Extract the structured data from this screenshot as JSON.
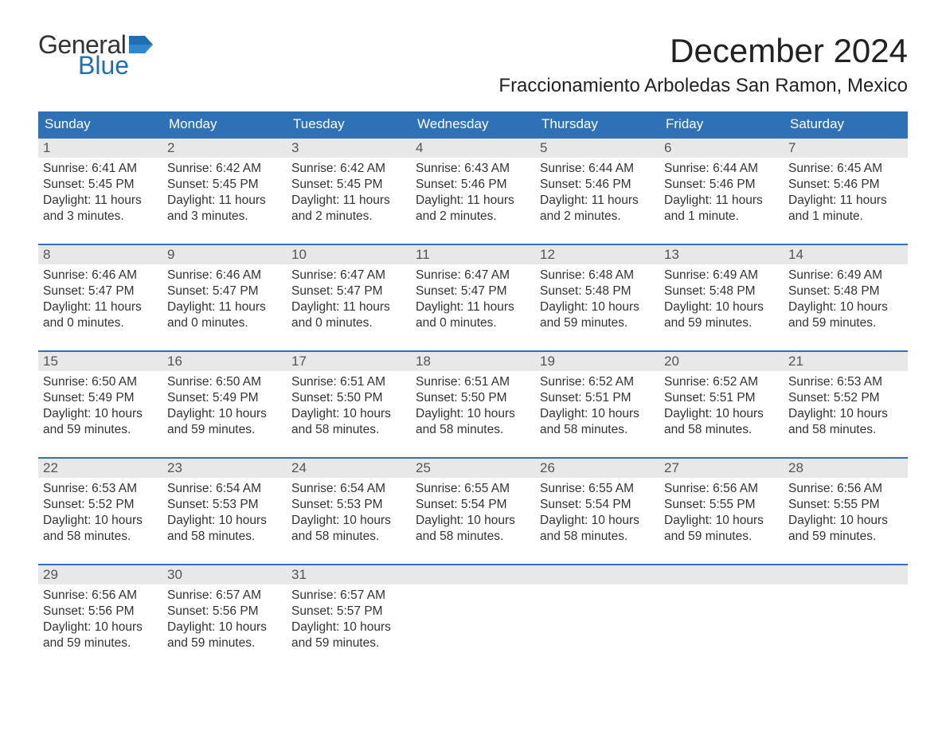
{
  "logo": {
    "text_general": "General",
    "text_blue": "Blue",
    "flag_color": "#1f6fb2"
  },
  "title": "December 2024",
  "location": "Fraccionamiento Arboledas San Ramon, Mexico",
  "colors": {
    "header_bg": "#2f71b6",
    "header_text": "#ffffff",
    "day_number_bg": "#e8e8e8",
    "day_number_text": "#555555",
    "body_text": "#333333",
    "week_top_border": "#2f71b6",
    "page_bg": "#ffffff"
  },
  "typography": {
    "month_title_fontsize": 42,
    "location_fontsize": 24,
    "weekday_fontsize": 17,
    "daynum_fontsize": 17,
    "body_fontsize": 15.5,
    "font_family": "Arial"
  },
  "calendar": {
    "type": "calendar-month",
    "weekdays": [
      "Sunday",
      "Monday",
      "Tuesday",
      "Wednesday",
      "Thursday",
      "Friday",
      "Saturday"
    ],
    "weeks": [
      [
        {
          "day": "1",
          "sunrise": "Sunrise: 6:41 AM",
          "sunset": "Sunset: 5:45 PM",
          "daylight1": "Daylight: 11 hours",
          "daylight2": "and 3 minutes."
        },
        {
          "day": "2",
          "sunrise": "Sunrise: 6:42 AM",
          "sunset": "Sunset: 5:45 PM",
          "daylight1": "Daylight: 11 hours",
          "daylight2": "and 3 minutes."
        },
        {
          "day": "3",
          "sunrise": "Sunrise: 6:42 AM",
          "sunset": "Sunset: 5:45 PM",
          "daylight1": "Daylight: 11 hours",
          "daylight2": "and 2 minutes."
        },
        {
          "day": "4",
          "sunrise": "Sunrise: 6:43 AM",
          "sunset": "Sunset: 5:46 PM",
          "daylight1": "Daylight: 11 hours",
          "daylight2": "and 2 minutes."
        },
        {
          "day": "5",
          "sunrise": "Sunrise: 6:44 AM",
          "sunset": "Sunset: 5:46 PM",
          "daylight1": "Daylight: 11 hours",
          "daylight2": "and 2 minutes."
        },
        {
          "day": "6",
          "sunrise": "Sunrise: 6:44 AM",
          "sunset": "Sunset: 5:46 PM",
          "daylight1": "Daylight: 11 hours",
          "daylight2": "and 1 minute."
        },
        {
          "day": "7",
          "sunrise": "Sunrise: 6:45 AM",
          "sunset": "Sunset: 5:46 PM",
          "daylight1": "Daylight: 11 hours",
          "daylight2": "and 1 minute."
        }
      ],
      [
        {
          "day": "8",
          "sunrise": "Sunrise: 6:46 AM",
          "sunset": "Sunset: 5:47 PM",
          "daylight1": "Daylight: 11 hours",
          "daylight2": "and 0 minutes."
        },
        {
          "day": "9",
          "sunrise": "Sunrise: 6:46 AM",
          "sunset": "Sunset: 5:47 PM",
          "daylight1": "Daylight: 11 hours",
          "daylight2": "and 0 minutes."
        },
        {
          "day": "10",
          "sunrise": "Sunrise: 6:47 AM",
          "sunset": "Sunset: 5:47 PM",
          "daylight1": "Daylight: 11 hours",
          "daylight2": "and 0 minutes."
        },
        {
          "day": "11",
          "sunrise": "Sunrise: 6:47 AM",
          "sunset": "Sunset: 5:47 PM",
          "daylight1": "Daylight: 11 hours",
          "daylight2": "and 0 minutes."
        },
        {
          "day": "12",
          "sunrise": "Sunrise: 6:48 AM",
          "sunset": "Sunset: 5:48 PM",
          "daylight1": "Daylight: 10 hours",
          "daylight2": "and 59 minutes."
        },
        {
          "day": "13",
          "sunrise": "Sunrise: 6:49 AM",
          "sunset": "Sunset: 5:48 PM",
          "daylight1": "Daylight: 10 hours",
          "daylight2": "and 59 minutes."
        },
        {
          "day": "14",
          "sunrise": "Sunrise: 6:49 AM",
          "sunset": "Sunset: 5:48 PM",
          "daylight1": "Daylight: 10 hours",
          "daylight2": "and 59 minutes."
        }
      ],
      [
        {
          "day": "15",
          "sunrise": "Sunrise: 6:50 AM",
          "sunset": "Sunset: 5:49 PM",
          "daylight1": "Daylight: 10 hours",
          "daylight2": "and 59 minutes."
        },
        {
          "day": "16",
          "sunrise": "Sunrise: 6:50 AM",
          "sunset": "Sunset: 5:49 PM",
          "daylight1": "Daylight: 10 hours",
          "daylight2": "and 59 minutes."
        },
        {
          "day": "17",
          "sunrise": "Sunrise: 6:51 AM",
          "sunset": "Sunset: 5:50 PM",
          "daylight1": "Daylight: 10 hours",
          "daylight2": "and 58 minutes."
        },
        {
          "day": "18",
          "sunrise": "Sunrise: 6:51 AM",
          "sunset": "Sunset: 5:50 PM",
          "daylight1": "Daylight: 10 hours",
          "daylight2": "and 58 minutes."
        },
        {
          "day": "19",
          "sunrise": "Sunrise: 6:52 AM",
          "sunset": "Sunset: 5:51 PM",
          "daylight1": "Daylight: 10 hours",
          "daylight2": "and 58 minutes."
        },
        {
          "day": "20",
          "sunrise": "Sunrise: 6:52 AM",
          "sunset": "Sunset: 5:51 PM",
          "daylight1": "Daylight: 10 hours",
          "daylight2": "and 58 minutes."
        },
        {
          "day": "21",
          "sunrise": "Sunrise: 6:53 AM",
          "sunset": "Sunset: 5:52 PM",
          "daylight1": "Daylight: 10 hours",
          "daylight2": "and 58 minutes."
        }
      ],
      [
        {
          "day": "22",
          "sunrise": "Sunrise: 6:53 AM",
          "sunset": "Sunset: 5:52 PM",
          "daylight1": "Daylight: 10 hours",
          "daylight2": "and 58 minutes."
        },
        {
          "day": "23",
          "sunrise": "Sunrise: 6:54 AM",
          "sunset": "Sunset: 5:53 PM",
          "daylight1": "Daylight: 10 hours",
          "daylight2": "and 58 minutes."
        },
        {
          "day": "24",
          "sunrise": "Sunrise: 6:54 AM",
          "sunset": "Sunset: 5:53 PM",
          "daylight1": "Daylight: 10 hours",
          "daylight2": "and 58 minutes."
        },
        {
          "day": "25",
          "sunrise": "Sunrise: 6:55 AM",
          "sunset": "Sunset: 5:54 PM",
          "daylight1": "Daylight: 10 hours",
          "daylight2": "and 58 minutes."
        },
        {
          "day": "26",
          "sunrise": "Sunrise: 6:55 AM",
          "sunset": "Sunset: 5:54 PM",
          "daylight1": "Daylight: 10 hours",
          "daylight2": "and 58 minutes."
        },
        {
          "day": "27",
          "sunrise": "Sunrise: 6:56 AM",
          "sunset": "Sunset: 5:55 PM",
          "daylight1": "Daylight: 10 hours",
          "daylight2": "and 59 minutes."
        },
        {
          "day": "28",
          "sunrise": "Sunrise: 6:56 AM",
          "sunset": "Sunset: 5:55 PM",
          "daylight1": "Daylight: 10 hours",
          "daylight2": "and 59 minutes."
        }
      ],
      [
        {
          "day": "29",
          "sunrise": "Sunrise: 6:56 AM",
          "sunset": "Sunset: 5:56 PM",
          "daylight1": "Daylight: 10 hours",
          "daylight2": "and 59 minutes."
        },
        {
          "day": "30",
          "sunrise": "Sunrise: 6:57 AM",
          "sunset": "Sunset: 5:56 PM",
          "daylight1": "Daylight: 10 hours",
          "daylight2": "and 59 minutes."
        },
        {
          "day": "31",
          "sunrise": "Sunrise: 6:57 AM",
          "sunset": "Sunset: 5:57 PM",
          "daylight1": "Daylight: 10 hours",
          "daylight2": "and 59 minutes."
        },
        null,
        null,
        null,
        null
      ]
    ]
  }
}
